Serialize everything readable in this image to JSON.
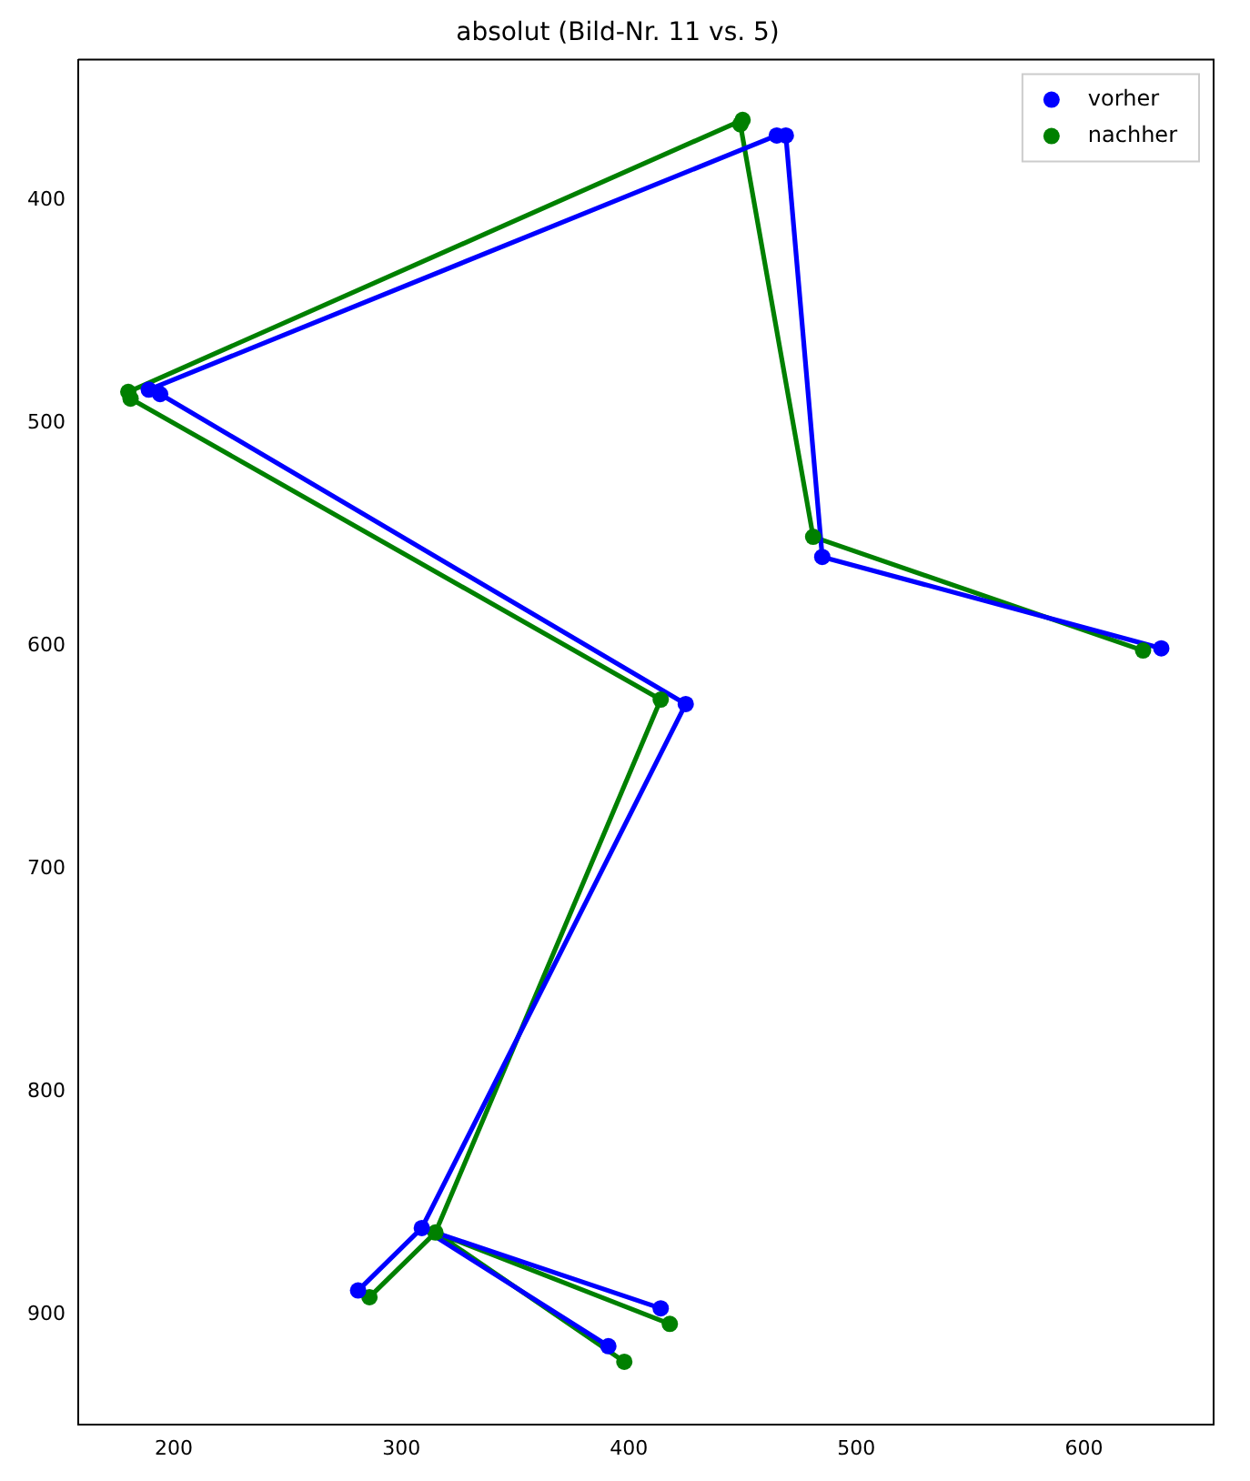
{
  "chart_data": {
    "type": "scatter",
    "title": "absolut (Bild-Nr. 11 vs. 5)",
    "xlim": [
      158,
      657
    ],
    "ylim": [
      949,
      337
    ],
    "xticks": [
      200,
      300,
      400,
      500,
      600
    ],
    "yticks": [
      400,
      500,
      600,
      700,
      800,
      900
    ],
    "grid": false,
    "legend": "top right",
    "series": [
      {
        "name": "vorher",
        "type": "scatter",
        "marker": "circle",
        "color": "#0000ff",
        "x": [
          634,
          485,
          465,
          469,
          189,
          194,
          425,
          309,
          281,
          414,
          391
        ],
        "values": [
          601,
          560,
          371,
          371,
          485,
          487,
          626,
          861,
          889,
          897,
          914
        ]
      },
      {
        "type": "line",
        "marker": "none",
        "color": "#0000ff",
        "x": [
          634,
          485,
          469,
          465,
          189,
          194,
          425,
          309,
          281,
          309,
          414,
          309,
          391
        ],
        "values": [
          601,
          560,
          371,
          371,
          485,
          487,
          626,
          861,
          889,
          861,
          897,
          861,
          914
        ]
      },
      {
        "name": "nachher",
        "type": "scatter",
        "marker": "circle",
        "color": "#008000",
        "x": [
          626,
          481,
          449,
          450,
          180,
          181,
          414,
          315,
          286,
          418,
          398
        ],
        "values": [
          602,
          551,
          366,
          364,
          486,
          489,
          624,
          863,
          892,
          904,
          921
        ]
      },
      {
        "type": "line",
        "marker": "none",
        "color": "#008000",
        "x": [
          626,
          481,
          449,
          450,
          180,
          181,
          414,
          315,
          286,
          315,
          418,
          315,
          398
        ],
        "values": [
          602,
          551,
          366,
          364,
          486,
          489,
          624,
          863,
          892,
          863,
          904,
          863,
          921
        ]
      }
    ]
  }
}
